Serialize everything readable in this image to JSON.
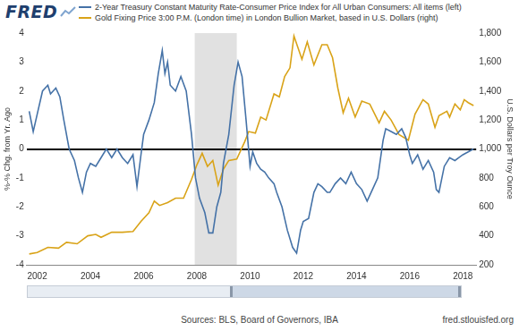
{
  "chart_data": {
    "type": "line",
    "logo": "FRED",
    "source": "Sources: BLS, Board of Governors, IBA",
    "credit": "fred.stlouisfed.org",
    "ylabel": "%-% Chg. from Yr. Ago",
    "y2label": "U.S. Dollars per Troy Ounce",
    "legend": "top",
    "grid": false,
    "xlim": [
      2001.6,
      2018.5
    ],
    "xticks": [
      2002,
      2004,
      2006,
      2008,
      2010,
      2012,
      2014,
      2016,
      2018
    ],
    "ylim": [
      -4,
      4
    ],
    "yticks": [
      -4,
      -3,
      -2,
      -1,
      0,
      1,
      2,
      3,
      4
    ],
    "y2lim": [
      200,
      1800
    ],
    "y2ticks": [
      200,
      400,
      600,
      800,
      {
        "value": 1000,
        "label": "1,000"
      },
      {
        "value": 1200,
        "label": "1,200"
      },
      {
        "value": 1400,
        "label": "1,400"
      },
      {
        "value": 1600,
        "label": "1,600"
      },
      {
        "value": 1800,
        "label": "1,800"
      }
    ],
    "shaded_ranges": [
      [
        2007.92,
        2009.5
      ]
    ],
    "series": [
      {
        "name": "2-Year Treasury Constant Maturity Rate-Consumer Price Index for All Urban Consumers: All items (left)",
        "color": "#4572a7",
        "axis": "y",
        "x": [
          2001.7,
          2001.85,
          2002.0,
          2002.2,
          2002.4,
          2002.5,
          2002.7,
          2002.85,
          2003.0,
          2003.2,
          2003.4,
          2003.55,
          2003.7,
          2003.85,
          2004.0,
          2004.2,
          2004.4,
          2004.6,
          2004.8,
          2005.0,
          2005.2,
          2005.4,
          2005.6,
          2005.75,
          2005.9,
          2006.0,
          2006.2,
          2006.4,
          2006.55,
          2006.7,
          2006.8,
          2006.9,
          2007.0,
          2007.2,
          2007.4,
          2007.6,
          2007.8,
          2007.95,
          2008.1,
          2008.3,
          2008.45,
          2008.6,
          2008.75,
          2008.9,
          2009.0,
          2009.2,
          2009.4,
          2009.55,
          2009.7,
          2009.85,
          2010.0,
          2010.1,
          2010.25,
          2010.4,
          2010.55,
          2010.7,
          2010.9,
          2011.0,
          2011.2,
          2011.4,
          2011.6,
          2011.75,
          2011.9,
          2012.0,
          2012.2,
          2012.4,
          2012.55,
          2012.7,
          2012.9,
          2013.0,
          2013.2,
          2013.4,
          2013.6,
          2013.8,
          2014.0,
          2014.2,
          2014.4,
          2014.6,
          2014.8,
          2015.0,
          2015.1,
          2015.3,
          2015.5,
          2015.7,
          2015.85,
          2016.0,
          2016.1,
          2016.3,
          2016.5,
          2016.7,
          2016.9,
          2017.0,
          2017.1,
          2017.3,
          2017.5,
          2017.7,
          2017.85,
          2018.0,
          2018.2,
          2018.4
        ],
        "values": [
          1.3,
          0.6,
          1.2,
          2.0,
          2.2,
          1.9,
          2.1,
          1.8,
          1.0,
          0.0,
          -0.4,
          -1.0,
          -1.5,
          -0.8,
          -0.5,
          -0.6,
          -0.3,
          0.0,
          -0.3,
          0.0,
          -0.3,
          -0.5,
          -0.2,
          -1.3,
          -0.2,
          0.5,
          1.0,
          1.6,
          2.6,
          3.4,
          2.6,
          3.0,
          2.2,
          2.0,
          2.5,
          2.0,
          0.5,
          -1.0,
          -1.7,
          -2.2,
          -2.9,
          -2.9,
          -2.0,
          -1.5,
          -0.5,
          0.5,
          2.2,
          3.0,
          2.5,
          1.0,
          -0.6,
          -0.1,
          -0.5,
          -0.7,
          -0.8,
          -1.0,
          -1.2,
          -1.5,
          -2.0,
          -2.8,
          -3.4,
          -3.6,
          -2.8,
          -2.5,
          -2.4,
          -1.5,
          -1.2,
          -1.3,
          -1.5,
          -1.5,
          -1.2,
          -1.0,
          -1.2,
          -0.8,
          -1.2,
          -1.4,
          -1.8,
          -1.4,
          -1.0,
          0.3,
          0.7,
          0.6,
          0.5,
          0.7,
          0.4,
          -0.2,
          -0.5,
          -0.2,
          -0.7,
          -0.4,
          -0.8,
          -1.4,
          -1.5,
          -0.6,
          -0.3,
          -0.4,
          -0.3,
          -0.2,
          -0.1,
          0.0
        ]
      },
      {
        "name": "Gold Fixing Price 3:00 P.M. (London time) in London Bullion Market, based in U.S. Dollars (right)",
        "color": "#d9a318",
        "axis": "y2",
        "x": [
          2001.7,
          2002.0,
          2002.4,
          2002.8,
          2003.1,
          2003.5,
          2003.9,
          2004.2,
          2004.4,
          2004.8,
          2005.2,
          2005.6,
          2005.9,
          2006.2,
          2006.4,
          2006.6,
          2006.9,
          2007.2,
          2007.5,
          2007.8,
          2008.0,
          2008.2,
          2008.4,
          2008.6,
          2008.8,
          2009.0,
          2009.2,
          2009.5,
          2009.8,
          2009.95,
          2010.2,
          2010.4,
          2010.6,
          2010.9,
          2011.1,
          2011.3,
          2011.5,
          2011.65,
          2011.8,
          2011.95,
          2012.15,
          2012.4,
          2012.7,
          2012.9,
          2013.1,
          2013.3,
          2013.5,
          2013.7,
          2013.95,
          2014.2,
          2014.5,
          2014.85,
          2015.05,
          2015.3,
          2015.6,
          2015.95,
          2016.2,
          2016.5,
          2016.7,
          2016.95,
          2017.1,
          2017.4,
          2017.5,
          2017.7,
          2017.9,
          2018.05,
          2018.2,
          2018.4
        ],
        "values": [
          275,
          285,
          320,
          315,
          355,
          345,
          400,
          410,
          390,
          425,
          425,
          430,
          500,
          560,
          640,
          610,
          630,
          660,
          660,
          790,
          890,
          970,
          880,
          920,
          750,
          860,
          920,
          930,
          1050,
          1120,
          1110,
          1220,
          1200,
          1380,
          1360,
          1500,
          1560,
          1780,
          1700,
          1620,
          1740,
          1580,
          1720,
          1720,
          1630,
          1420,
          1250,
          1350,
          1220,
          1330,
          1310,
          1180,
          1260,
          1200,
          1100,
          1060,
          1240,
          1340,
          1310,
          1150,
          1230,
          1260,
          1220,
          1310,
          1270,
          1340,
          1320,
          1300
        ]
      }
    ]
  }
}
